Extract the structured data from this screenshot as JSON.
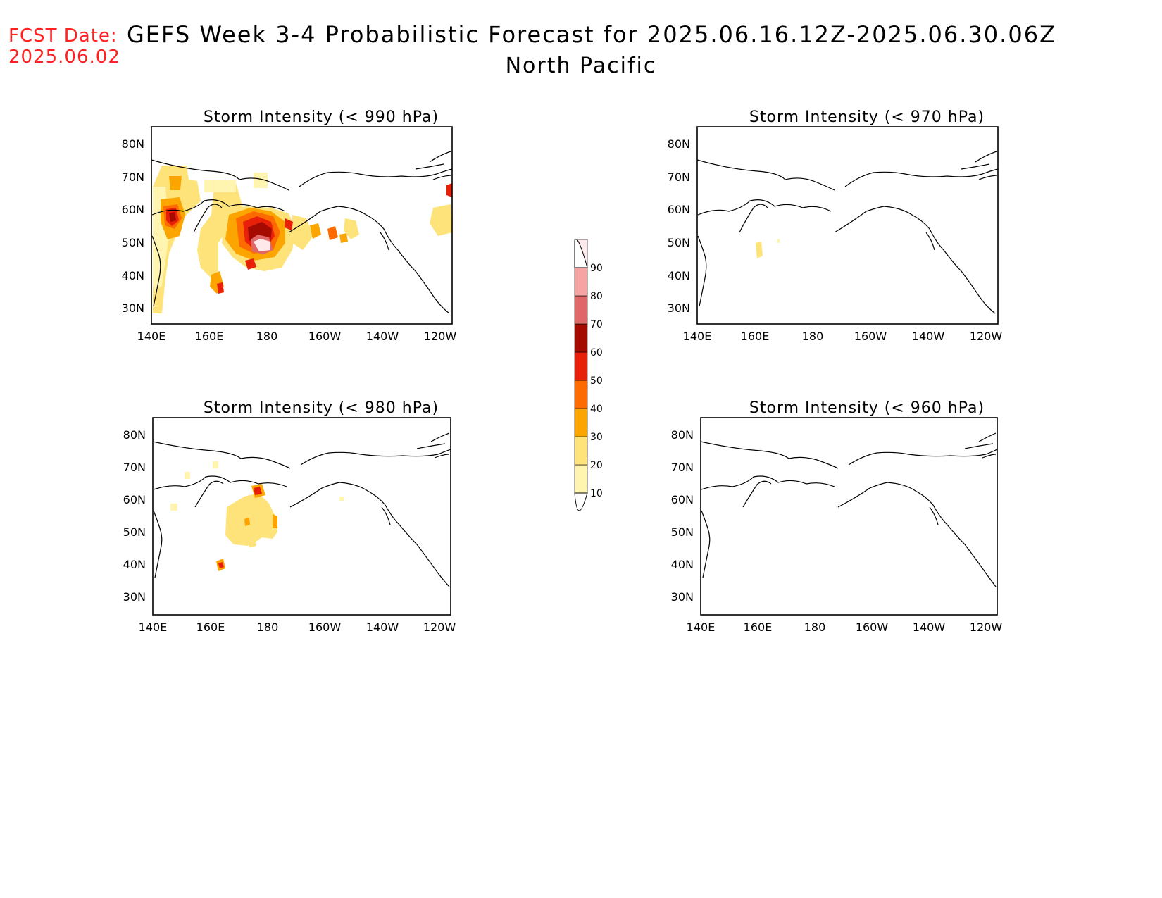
{
  "header": {
    "fcst_label": "FCST Date:",
    "fcst_date": "2025.06.02",
    "title": "GEFS Week 3-4 Probabilistic Forecast for 2025.06.16.12Z-2025.06.30.06Z",
    "subtitle": "North Pacific"
  },
  "axes": {
    "lat_labels": [
      "80N",
      "70N",
      "60N",
      "50N",
      "40N",
      "30N"
    ],
    "lon_labels": [
      "140E",
      "160E",
      "180",
      "160W",
      "140W",
      "120W"
    ]
  },
  "colorbar": {
    "levels": [
      "90",
      "80",
      "70",
      "60",
      "50",
      "40",
      "30",
      "20",
      "10"
    ],
    "colors": {
      "10": "#fff4b0",
      "20": "#fde37a",
      "30": "#fca400",
      "40": "#fd6a00",
      "50": "#e8200a",
      "60": "#a50a00",
      "70": "#e06767",
      "80": "#f5a3a3",
      "90": "#ffe8ea"
    }
  },
  "panels": {
    "p990": {
      "title": "Storm Intensity (< 990 hPa)"
    },
    "p970": {
      "title": "Storm Intensity (< 970 hPa)"
    },
    "p980": {
      "title": "Storm Intensity (< 980 hPa)"
    },
    "p960": {
      "title": "Storm Intensity (< 960 hPa)"
    }
  }
}
